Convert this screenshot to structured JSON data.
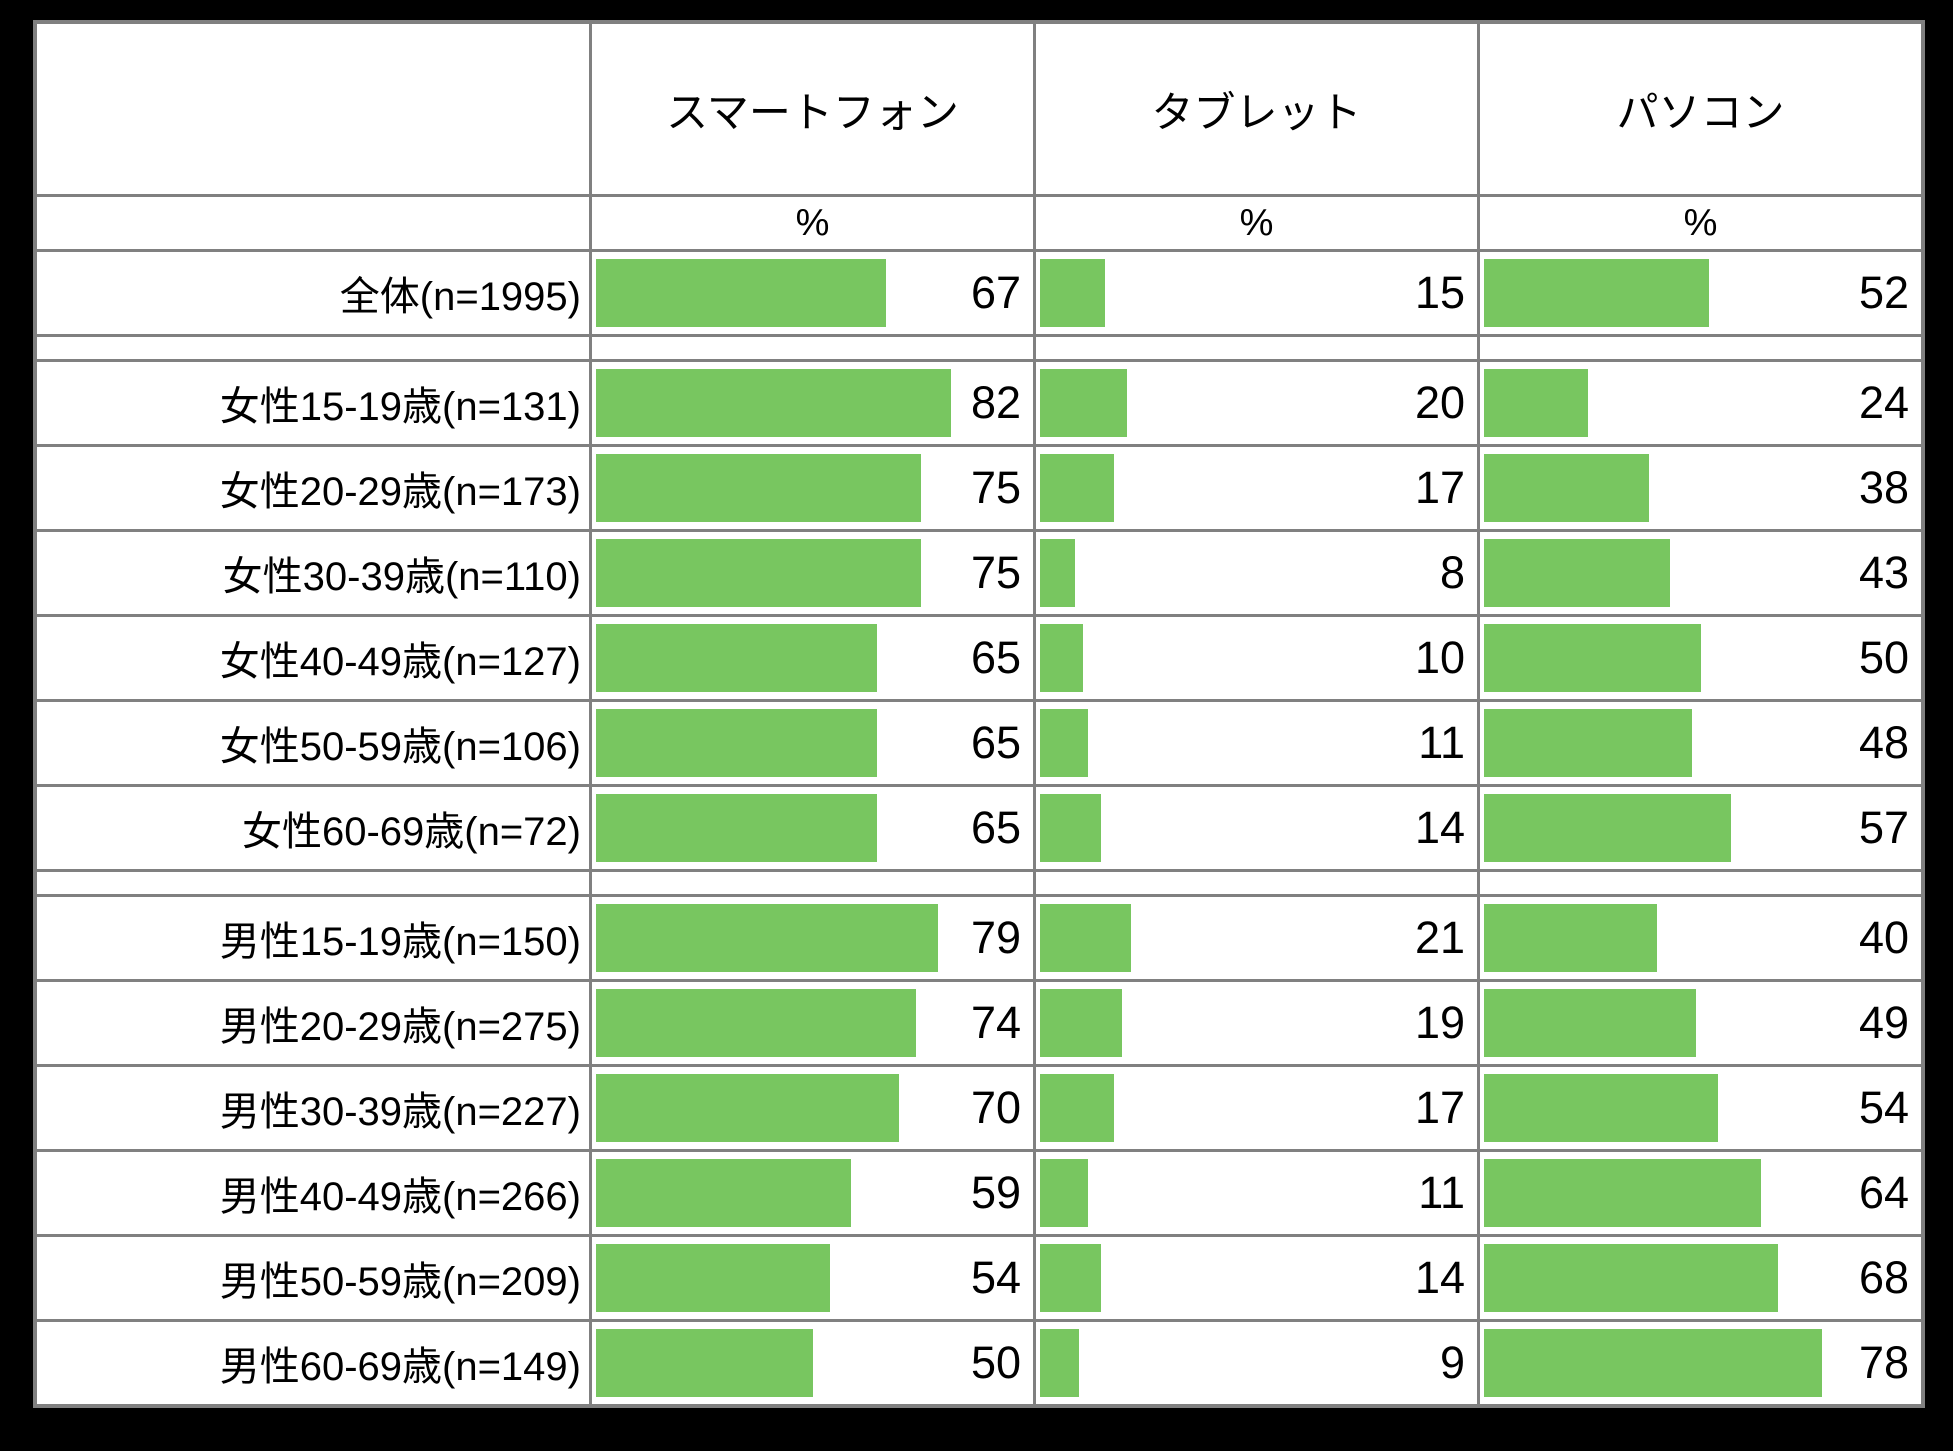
{
  "table": {
    "columns": [
      {
        "label": "スマートフォン",
        "unit": "%"
      },
      {
        "label": "タブレット",
        "unit": "%"
      },
      {
        "label": "パソコン",
        "unit": "%"
      }
    ],
    "rows": [
      {
        "label": "全体(n=1995)",
        "values": [
          67,
          15,
          52
        ],
        "spacer_after": true
      },
      {
        "label": "女性15-19歳(n=131)",
        "values": [
          82,
          20,
          24
        ],
        "spacer_after": false
      },
      {
        "label": "女性20-29歳(n=173)",
        "values": [
          75,
          17,
          38
        ],
        "spacer_after": false
      },
      {
        "label": "女性30-39歳(n=110)",
        "values": [
          75,
          8,
          43
        ],
        "spacer_after": false
      },
      {
        "label": "女性40-49歳(n=127)",
        "values": [
          65,
          10,
          50
        ],
        "spacer_after": false
      },
      {
        "label": "女性50-59歳(n=106)",
        "values": [
          65,
          11,
          48
        ],
        "spacer_after": false
      },
      {
        "label": "女性60-69歳(n=72)",
        "values": [
          65,
          14,
          57
        ],
        "spacer_after": true
      },
      {
        "label": "男性15-19歳(n=150)",
        "values": [
          79,
          21,
          40
        ],
        "spacer_after": false
      },
      {
        "label": "男性20-29歳(n=275)",
        "values": [
          74,
          19,
          49
        ],
        "spacer_after": false
      },
      {
        "label": "男性30-39歳(n=227)",
        "values": [
          70,
          17,
          54
        ],
        "spacer_after": false
      },
      {
        "label": "男性40-49歳(n=266)",
        "values": [
          59,
          11,
          64
        ],
        "spacer_after": false
      },
      {
        "label": "男性50-59歳(n=209)",
        "values": [
          54,
          14,
          68
        ],
        "spacer_after": false
      },
      {
        "label": "男性60-69歳(n=149)",
        "values": [
          50,
          9,
          78
        ],
        "spacer_after": false
      }
    ]
  },
  "colors": {
    "bar": "#78C660",
    "grid_line": "#808080",
    "cell_background": "#FFFFFF",
    "page_background": "#000000",
    "text": "#000000"
  },
  "chart_data": {
    "type": "bar",
    "orientation": "horizontal",
    "unit": "%",
    "xlim": [
      0,
      100
    ],
    "categories": [
      "全体(n=1995)",
      "女性15-19歳(n=131)",
      "女性20-29歳(n=173)",
      "女性30-39歳(n=110)",
      "女性40-49歳(n=127)",
      "女性50-59歳(n=106)",
      "女性60-69歳(n=72)",
      "男性15-19歳(n=150)",
      "男性20-29歳(n=275)",
      "男性30-39歳(n=227)",
      "男性40-49歳(n=266)",
      "男性50-59歳(n=209)",
      "男性60-69歳(n=149)"
    ],
    "series": [
      {
        "name": "スマートフォン",
        "values": [
          67,
          82,
          75,
          75,
          65,
          65,
          65,
          79,
          74,
          70,
          59,
          54,
          50
        ]
      },
      {
        "name": "タブレット",
        "values": [
          15,
          20,
          17,
          8,
          10,
          11,
          14,
          21,
          19,
          17,
          11,
          14,
          9
        ]
      },
      {
        "name": "パソコン",
        "values": [
          52,
          24,
          38,
          43,
          50,
          48,
          57,
          40,
          49,
          54,
          64,
          68,
          78
        ]
      }
    ],
    "legend_position": "column-headers",
    "grid": true
  }
}
